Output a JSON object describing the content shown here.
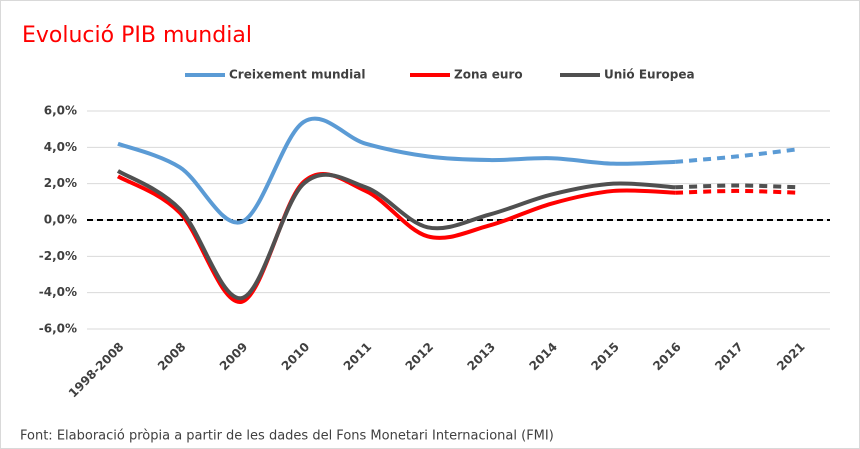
{
  "chart_data": {
    "type": "line",
    "title": "Evolució PIB mundial",
    "categories": [
      "1998-2008",
      "2008",
      "2009",
      "2010",
      "2011",
      "2012",
      "2013",
      "2014",
      "2015",
      "2016",
      "2017",
      "2021"
    ],
    "series": [
      {
        "name": "Creixement mundial",
        "color": "#5b9bd5",
        "values": [
          4.2,
          2.9,
          -0.1,
          5.4,
          4.2,
          3.5,
          3.3,
          3.4,
          3.1,
          3.2,
          3.5,
          3.9
        ]
      },
      {
        "name": "Zona euro",
        "color": "#ff0000",
        "values": [
          2.4,
          0.4,
          -4.5,
          2.1,
          1.6,
          -0.9,
          -0.3,
          0.9,
          1.6,
          1.5,
          1.6,
          1.5
        ]
      },
      {
        "name": "Unió Europea",
        "color": "#505050",
        "values": [
          2.7,
          0.6,
          -4.3,
          2.0,
          1.8,
          -0.4,
          0.3,
          1.4,
          2.0,
          1.8,
          1.9,
          1.8
        ]
      }
    ],
    "dashed_from": "2016",
    "ylim": [
      -6,
      6
    ],
    "yticks": [
      {
        "value": -6,
        "label": "-6,0%"
      },
      {
        "value": -4,
        "label": "-4,0%"
      },
      {
        "value": -2,
        "label": "-2,0%"
      },
      {
        "value": 0,
        "label": "0,0%"
      },
      {
        "value": 2,
        "label": "2,0%"
      },
      {
        "value": 4,
        "label": "4,0%"
      },
      {
        "value": 6,
        "label": "6,0%"
      }
    ],
    "grid": true,
    "zero_line": true,
    "legend": "top",
    "source": "Font: Elaboració pròpia a partir de les dades del Fons Monetari Internacional (FMI)"
  }
}
